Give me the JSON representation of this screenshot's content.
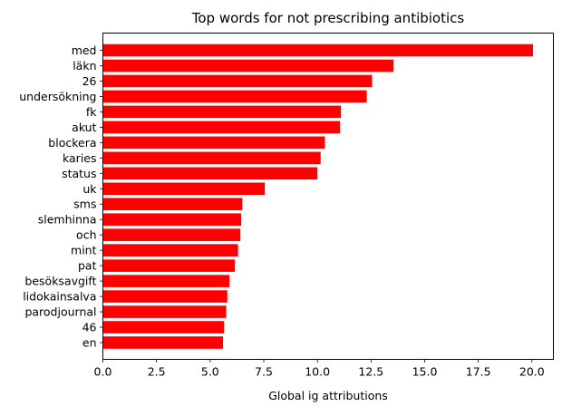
{
  "chart_data": {
    "type": "bar",
    "orientation": "horizontal",
    "title": "Top words for not prescribing antibiotics",
    "xlabel": "Global ig attributions",
    "ylabel": "",
    "xlim": [
      0,
      21.0
    ],
    "xticks": [
      0.0,
      2.5,
      5.0,
      7.5,
      10.0,
      12.5,
      15.0,
      17.5,
      20.0
    ],
    "xtick_labels": [
      "0.0",
      "2.5",
      "5.0",
      "7.5",
      "10.0",
      "12.5",
      "15.0",
      "17.5",
      "20.0"
    ],
    "grid": false,
    "bar_color": "#ff0000",
    "categories": [
      "med",
      "läkn",
      "26",
      "undersökning",
      "fk",
      "akut",
      "blockera",
      "karies",
      "status",
      "uk",
      "sms",
      "slemhinna",
      "och",
      "mint",
      "pat",
      "besöksavgift",
      "lidokainsalva",
      "parodjournal",
      "46",
      "en"
    ],
    "values": [
      20.05,
      13.55,
      12.55,
      12.3,
      11.1,
      11.05,
      10.35,
      10.15,
      10.0,
      7.55,
      6.5,
      6.45,
      6.4,
      6.3,
      6.15,
      5.9,
      5.8,
      5.75,
      5.65,
      5.6
    ]
  }
}
